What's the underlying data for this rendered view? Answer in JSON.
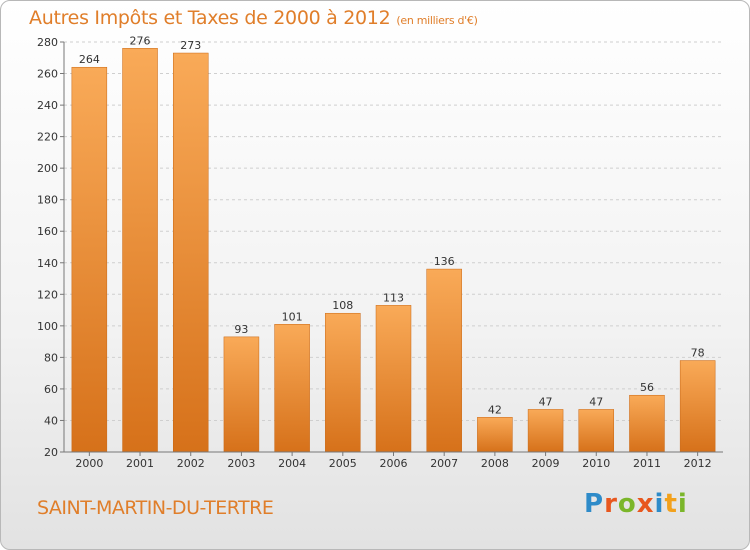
{
  "header": {
    "title": "Autres Impôts et Taxes de 2000 à 2012",
    "subtitle": "(en milliers d'€)"
  },
  "footer": {
    "town": "SAINT-MARTIN-DU-TERTRE"
  },
  "logo": {
    "letters": [
      "P",
      "r",
      "o",
      "x",
      "i",
      "t",
      "i"
    ],
    "colors": [
      "#2e8bc9",
      "#e8571e",
      "#7bb62a",
      "#e8571e",
      "#2e8bc9",
      "#f2a11c",
      "#7bb62a"
    ]
  },
  "chart_data": {
    "type": "bar",
    "title": "Autres Impôts et Taxes de 2000 à 2012",
    "xlabel": "",
    "ylabel": "",
    "categories": [
      "2000",
      "2001",
      "2002",
      "2003",
      "2004",
      "2005",
      "2006",
      "2007",
      "2008",
      "2009",
      "2010",
      "2011",
      "2012"
    ],
    "values": [
      264,
      276,
      273,
      93,
      101,
      108,
      113,
      136,
      42,
      47,
      47,
      56,
      78
    ],
    "ylim": [
      20,
      280
    ],
    "yticks": [
      20,
      40,
      60,
      80,
      100,
      120,
      140,
      160,
      180,
      200,
      220,
      240,
      260,
      280
    ],
    "grid": true,
    "bar_color_top": "#f7a754",
    "bar_color_bottom": "#d8741b"
  }
}
